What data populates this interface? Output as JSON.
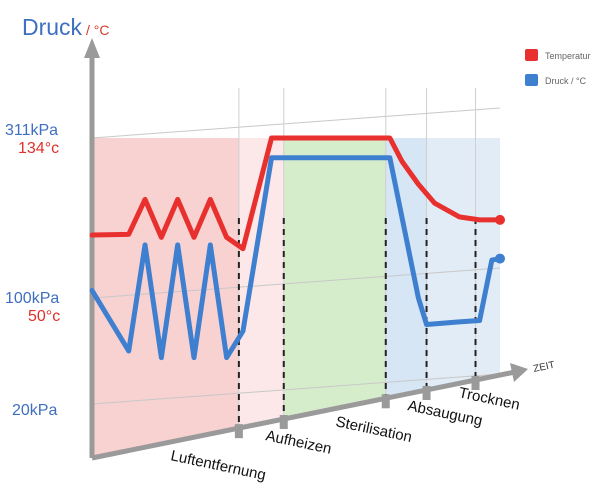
{
  "chart_data": {
    "type": "line",
    "title_main": "Druck",
    "title_sep": " / ",
    "title_unit": "°C",
    "x_axis_label": "ZEIT",
    "y_ticks": [
      {
        "pressure": "311kPa",
        "temp": "134°c",
        "level": 311
      },
      {
        "pressure": "100kPa",
        "temp": "50°c",
        "level": 100
      },
      {
        "pressure": "20kPa",
        "temp": "",
        "level": 20
      }
    ],
    "phases": [
      "Luftentfernung",
      "Aufheizen",
      "Sterilisation",
      "Absaugung",
      "Trocknen"
    ],
    "legend": [
      {
        "name": "Temperatur",
        "color": "#e8302e"
      },
      {
        "name": "Druck / °C",
        "color": "#3f7fd0"
      }
    ],
    "series": [
      {
        "name": "Temperatur",
        "color": "#e8302e",
        "x": [
          0,
          0.09,
          0.13,
          0.17,
          0.21,
          0.25,
          0.29,
          0.33,
          0.37,
          0.44,
          0.47,
          0.7,
          0.73,
          0.76,
          0.8,
          0.84,
          0.9,
          0.95,
          1.0
        ],
        "values": [
          183,
          184,
          230,
          180,
          230,
          180,
          230,
          180,
          165,
          311,
          311,
          311,
          311,
          280,
          250,
          225,
          207,
          203,
          203
        ]
      },
      {
        "name": "Druck / °C",
        "color": "#3f7fd0",
        "x": [
          0,
          0.09,
          0.13,
          0.17,
          0.21,
          0.25,
          0.29,
          0.33,
          0.37,
          0.44,
          0.47,
          0.7,
          0.73,
          0.8,
          0.82,
          0.9,
          0.95,
          0.98,
          1.0
        ],
        "values": [
          110,
          60,
          170,
          55,
          170,
          55,
          170,
          55,
          75,
          285,
          285,
          285,
          285,
          100,
          80,
          82,
          83,
          150,
          152
        ]
      }
    ]
  }
}
